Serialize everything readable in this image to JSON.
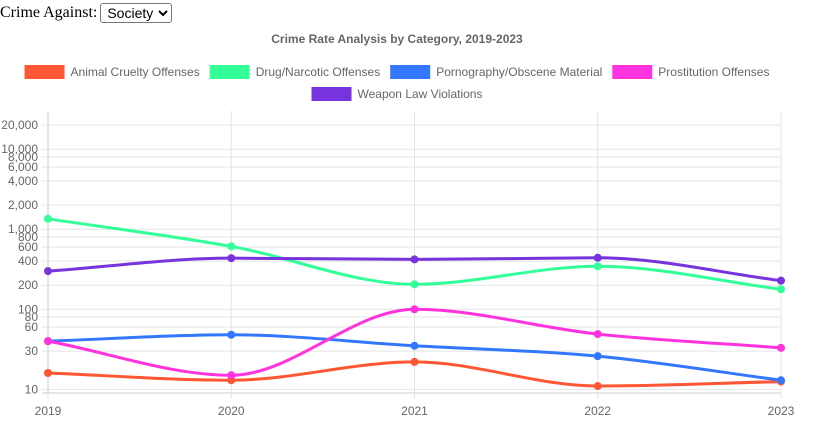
{
  "filter": {
    "label": "Crime Against:",
    "selected": "Society",
    "options": [
      "Society"
    ]
  },
  "chart_data": {
    "type": "line",
    "title": "Crime Rate Analysis by Category, 2019-2023",
    "xlabel": "",
    "ylabel": "",
    "y_scale": "log",
    "ylim": [
      9,
      30000
    ],
    "x": [
      "2019",
      "2020",
      "2021",
      "2022",
      "2023"
    ],
    "y_ticks": [
      10,
      30,
      60,
      80,
      100,
      200,
      400,
      600,
      800,
      1000,
      2000,
      4000,
      6000,
      8000,
      10000,
      20000
    ],
    "y_tick_labels": [
      "10",
      "30",
      "60",
      "80",
      "100",
      "200",
      "400",
      "600",
      "800",
      "1,000",
      "2,000",
      "4,000",
      "6,000",
      "8,000",
      "10,000",
      "20,000"
    ],
    "grid": true,
    "legend_position": "top",
    "series": [
      {
        "name": "Animal Cruelty Offenses",
        "color": "#ff5733",
        "values": [
          16,
          13,
          22,
          11,
          12.5
        ]
      },
      {
        "name": "Drug/Narcotic Offenses",
        "color": "#33ff99",
        "values": [
          1350,
          610,
          205,
          345,
          178
        ]
      },
      {
        "name": "Pornography/Obscene Material",
        "color": "#3377ff",
        "values": [
          40,
          48,
          35,
          26,
          13
        ]
      },
      {
        "name": "Prostitution Offenses",
        "color": "#ff33dd",
        "values": [
          40,
          15,
          100,
          49,
          33
        ]
      },
      {
        "name": "Weapon Law Violations",
        "color": "#7733dd",
        "values": [
          300,
          435,
          420,
          440,
          228
        ]
      }
    ]
  }
}
